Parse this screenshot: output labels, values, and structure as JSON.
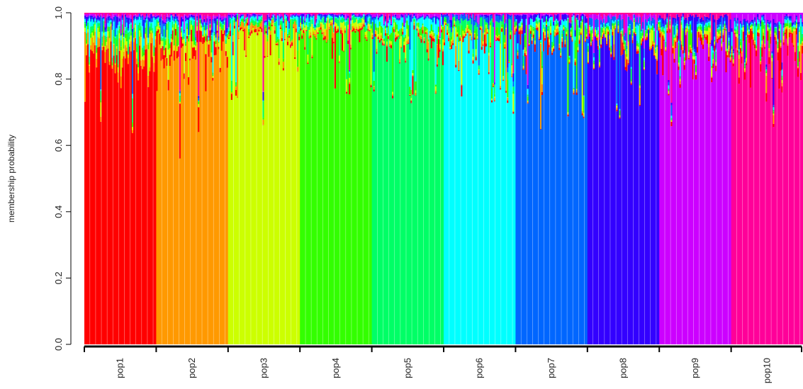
{
  "chart_data": {
    "type": "bar",
    "stacked": true,
    "ylabel": "membership probability",
    "xlabel": "",
    "ylim": [
      0,
      1
    ],
    "yticks": [
      0.0,
      0.2,
      0.4,
      0.6,
      0.8,
      1.0
    ],
    "ytick_labels": [
      "0.0",
      "0.2",
      "0.4",
      "0.6",
      "0.8",
      "1.0"
    ],
    "categories": [
      "pop1",
      "pop2",
      "pop3",
      "pop4",
      "pop5",
      "pop6",
      "pop7",
      "pop8",
      "pop9",
      "pop10"
    ],
    "individuals_per_group": 50,
    "cluster_colors": [
      "#ff0000",
      "#ff9900",
      "#ccff00",
      "#33ff00",
      "#00ff66",
      "#00ffff",
      "#0066ff",
      "#3300ff",
      "#cc00ff",
      "#ff0099"
    ],
    "mean_membership": [
      [
        0.93,
        0.02,
        0.01,
        0.01,
        0.01,
        0.01,
        0.005,
        0.005,
        0.005,
        0.005
      ],
      [
        0.02,
        0.94,
        0.01,
        0.005,
        0.005,
        0.005,
        0.005,
        0.005,
        0.005,
        0.005
      ],
      [
        0.005,
        0.01,
        0.96,
        0.005,
        0.005,
        0.005,
        0.0025,
        0.0025,
        0.0025,
        0.0025
      ],
      [
        0.005,
        0.005,
        0.01,
        0.96,
        0.01,
        0.005,
        0.0025,
        0.0025,
        0.0025,
        0.0025
      ],
      [
        0.005,
        0.005,
        0.005,
        0.015,
        0.94,
        0.02,
        0.0025,
        0.0025,
        0.005,
        0.0025
      ],
      [
        0.005,
        0.005,
        0.005,
        0.005,
        0.015,
        0.95,
        0.01,
        0.0025,
        0.0025,
        0.0025
      ],
      [
        0.005,
        0.005,
        0.005,
        0.005,
        0.005,
        0.01,
        0.95,
        0.01,
        0.0025,
        0.0025
      ],
      [
        0.005,
        0.005,
        0.005,
        0.005,
        0.005,
        0.005,
        0.015,
        0.94,
        0.01,
        0.005
      ],
      [
        0.01,
        0.005,
        0.005,
        0.005,
        0.005,
        0.005,
        0.005,
        0.01,
        0.94,
        0.01
      ],
      [
        0.015,
        0.005,
        0.005,
        0.005,
        0.005,
        0.005,
        0.005,
        0.005,
        0.015,
        0.935
      ]
    ],
    "grid": false,
    "legend": "none"
  }
}
